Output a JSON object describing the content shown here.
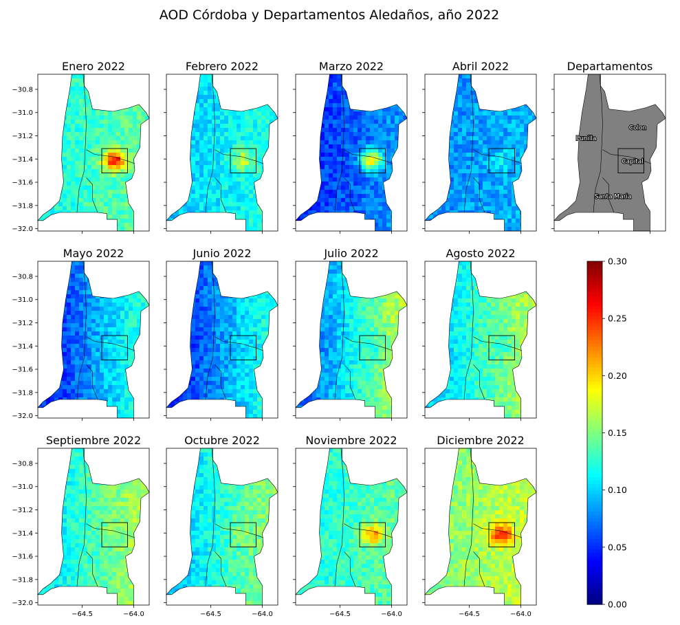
{
  "chart_data": {
    "type": "heatmap",
    "title": "AOD Córdoba y Departamentos Aledaños, año 2022",
    "colormap": "jet",
    "xlim": [
      -64.93,
      -63.85
    ],
    "ylim": [
      -32.02,
      -30.67
    ],
    "x_ticks": [
      -64.5,
      -64.0
    ],
    "x_tick_labels": [
      "−64.5",
      "−64.0"
    ],
    "y_ticks": [
      -30.8,
      -31.0,
      -31.2,
      -31.4,
      -31.6,
      -31.8,
      -32.0
    ],
    "y_tick_labels": [
      "−30.8",
      "−31.0",
      "−31.2",
      "−31.4",
      "−31.6",
      "−31.8",
      "−32.0"
    ],
    "panels": [
      {
        "title": "Enero 2022",
        "aod_west": 0.12,
        "aod_east": 0.14,
        "aod_capital": 0.26
      },
      {
        "title": "Febrero 2022",
        "aod_west": 0.1,
        "aod_east": 0.12,
        "aod_capital": 0.17
      },
      {
        "title": "Marzo 2022",
        "aod_west": 0.05,
        "aod_east": 0.08,
        "aod_capital": 0.19
      },
      {
        "title": "Abril 2022",
        "aod_west": 0.08,
        "aod_east": 0.09,
        "aod_capital": 0.11
      },
      {
        "title": "Mayo 2022",
        "aod_west": 0.05,
        "aod_east": 0.12,
        "aod_capital": 0.11
      },
      {
        "title": "Junio 2022",
        "aod_west": 0.05,
        "aod_east": 0.12,
        "aod_capital": 0.1
      },
      {
        "title": "Julio 2022",
        "aod_west": 0.07,
        "aod_east": 0.16,
        "aod_capital": 0.12
      },
      {
        "title": "Agosto 2022",
        "aod_west": 0.1,
        "aod_east": 0.16,
        "aod_capital": 0.13
      },
      {
        "title": "Septiembre 2022",
        "aod_west": 0.11,
        "aod_east": 0.16,
        "aod_capital": 0.15
      },
      {
        "title": "Octubre 2022",
        "aod_west": 0.1,
        "aod_east": 0.15,
        "aod_capital": 0.16
      },
      {
        "title": "Noviembre 2022",
        "aod_west": 0.12,
        "aod_east": 0.14,
        "aod_capital": 0.22
      },
      {
        "title": "Diciembre 2022",
        "aod_west": 0.15,
        "aod_east": 0.17,
        "aod_capital": 0.25
      }
    ],
    "departamentos": {
      "title": "Departamentos",
      "labels": [
        "Punilla",
        "Colon",
        "Capital",
        "Santa Maria"
      ],
      "fill": "#808080"
    },
    "colorbar": {
      "vmin": 0.0,
      "vmax": 0.3,
      "ticks": [
        "0.00",
        "0.05",
        "0.10",
        "0.15",
        "0.20",
        "0.25",
        "0.30"
      ]
    }
  }
}
